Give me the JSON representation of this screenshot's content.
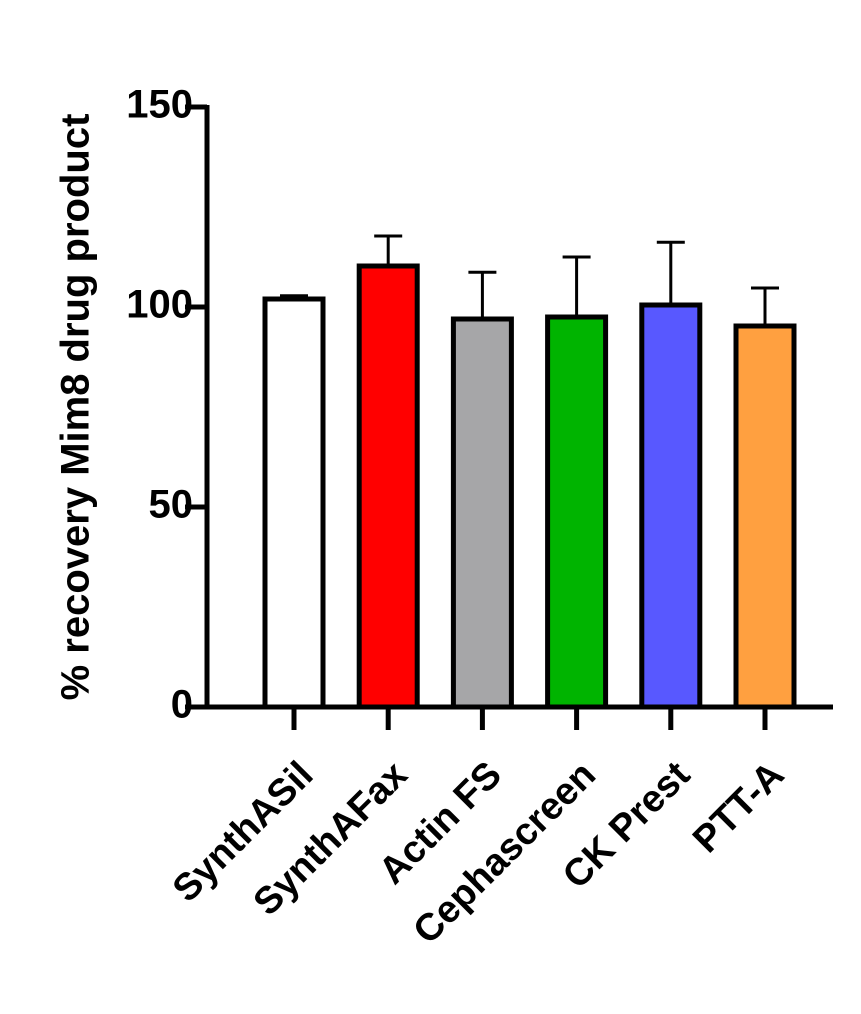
{
  "chart_data": {
    "type": "bar",
    "y_label": "% recovery Mim8 drug product",
    "categories": [
      "SynthASil",
      "SynthAFax",
      "Actin FS",
      "Cephascreen",
      "CK Prest",
      "PTT-A"
    ],
    "values": [
      102,
      110.25,
      97,
      97.5,
      100.5,
      95.25
    ],
    "errors": [
      0.8,
      7.5,
      11.7,
      15,
      15.7,
      9.5
    ],
    "colors": [
      "#ffffff",
      "#ff0000",
      "#a6a6a8",
      "#00b400",
      "#5858ff",
      "#ffa040"
    ],
    "ylim": [
      0,
      150
    ],
    "yticks": [
      0,
      50,
      100,
      150
    ]
  }
}
